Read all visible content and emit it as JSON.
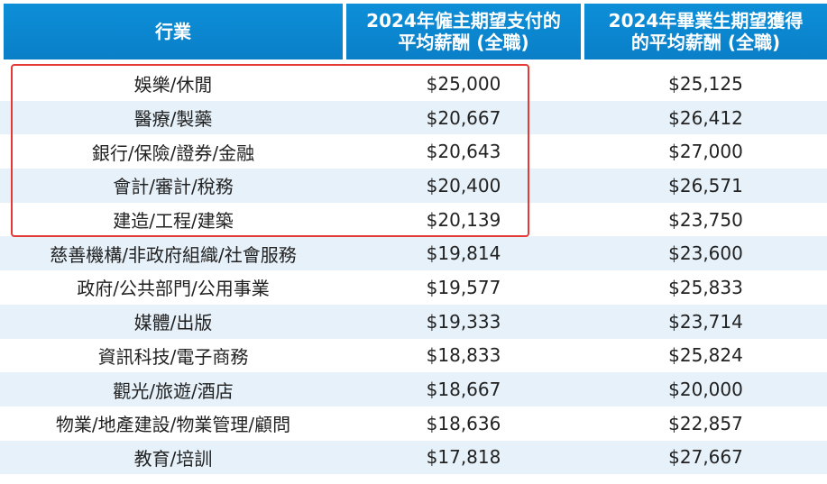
{
  "header": {
    "col0": "行業",
    "col1": "2024年僱主期望支付的\n平均薪酬 (全職)",
    "col2": "2024年畢業生期望獲得\n的平均薪酬 (全職)"
  },
  "rows": [
    {
      "industry": "娛樂/休閒",
      "employer": "$25,000",
      "graduate": "$25,125"
    },
    {
      "industry": "醫療/製藥",
      "employer": "$20,667",
      "graduate": "$26,412"
    },
    {
      "industry": "銀行/保險/證券/金融",
      "employer": "$20,643",
      "graduate": "$27,000"
    },
    {
      "industry": "會計/審計/稅務",
      "employer": "$20,400",
      "graduate": "$26,571"
    },
    {
      "industry": "建造/工程/建築",
      "employer": "$20,139",
      "graduate": "$23,750"
    },
    {
      "industry": "慈善機構/非政府組織/社會服務",
      "employer": "$19,814",
      "graduate": "$23,600"
    },
    {
      "industry": "政府/公共部門/公用事業",
      "employer": "$19,577",
      "graduate": "$25,833"
    },
    {
      "industry": "媒體/出版",
      "employer": "$19,333",
      "graduate": "$23,714"
    },
    {
      "industry": "資訊科技/電子商務",
      "employer": "$18,833",
      "graduate": "$25,824"
    },
    {
      "industry": "觀光/旅遊/酒店",
      "employer": "$18,667",
      "graduate": "$20,000"
    },
    {
      "industry": "物業/地產建設/物業管理/顧問",
      "employer": "$18,636",
      "graduate": "$22,857"
    },
    {
      "industry": "教育/培訓",
      "employer": "$17,818",
      "graduate": "$27,667"
    }
  ],
  "colors": {
    "header_bg": "#0a85cf",
    "alt_row_bg": "#e6f1fa",
    "highlight_border": "#e53935"
  }
}
